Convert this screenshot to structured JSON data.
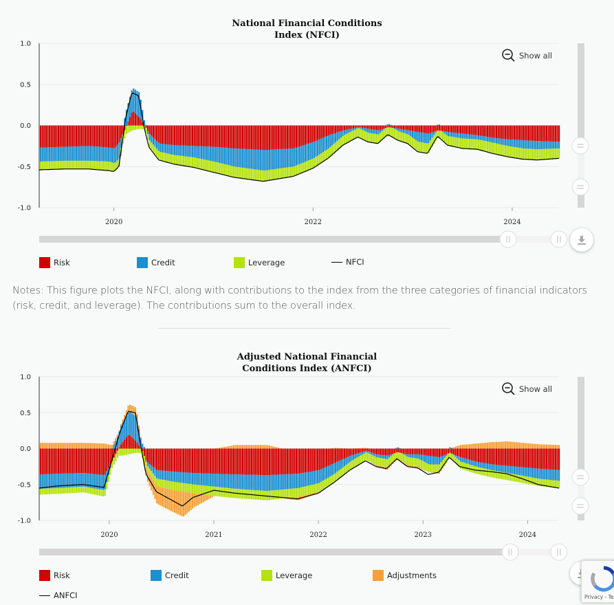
{
  "colors": {
    "risk": "#d00000",
    "credit": "#1b8fd0",
    "leverage": "#b5e20b",
    "adjustments": "#f7a035",
    "index_line": "#000000",
    "scrollbar": "#d6d6d6"
  },
  "icons": {
    "show_all": "zoom-out-icon",
    "download": "download-icon"
  },
  "chart_data": [
    {
      "type": "area",
      "title": "National Financial Conditions Index (NFCI)",
      "title_lines": [
        "National Financial Conditions",
        "Index (NFCI)"
      ],
      "show_all_label": "Show all",
      "y_ticks": [
        "1.0",
        "0.5",
        "0.0",
        "-0.5",
        "-1.0"
      ],
      "ylim": [
        -1.0,
        1.0
      ],
      "x_ticks": [
        "2020",
        "2022",
        "2024"
      ],
      "xlim": [
        2019.25,
        2024.47
      ],
      "legend": [
        {
          "name": "Risk",
          "kind": "swatch",
          "color": "#d00000"
        },
        {
          "name": "Credit",
          "kind": "swatch",
          "color": "#1b8fd0"
        },
        {
          "name": "Leverage",
          "kind": "swatch",
          "color": "#b5e20b"
        },
        {
          "name": "NFCI",
          "kind": "line",
          "color": "#000000"
        }
      ],
      "x": [
        2019.25,
        2019.5,
        2019.75,
        2019.95,
        2020.0,
        2020.05,
        2020.12,
        2020.18,
        2020.25,
        2020.3,
        2020.35,
        2020.45,
        2020.6,
        2020.8,
        2021.0,
        2021.2,
        2021.5,
        2021.8,
        2022.0,
        2022.15,
        2022.3,
        2022.45,
        2022.55,
        2022.65,
        2022.75,
        2022.85,
        2022.95,
        2023.05,
        2023.15,
        2023.25,
        2023.35,
        2023.5,
        2023.65,
        2023.8,
        2023.95,
        2024.1,
        2024.25,
        2024.47
      ],
      "series": [
        {
          "name": "Risk",
          "values": [
            -0.27,
            -0.26,
            -0.25,
            -0.27,
            -0.28,
            -0.2,
            0.0,
            0.18,
            0.1,
            0.0,
            -0.1,
            -0.22,
            -0.24,
            -0.25,
            -0.26,
            -0.28,
            -0.3,
            -0.28,
            -0.2,
            -0.12,
            -0.06,
            -0.02,
            -0.04,
            -0.06,
            -0.02,
            -0.04,
            -0.06,
            -0.08,
            -0.1,
            -0.06,
            -0.08,
            -0.1,
            -0.12,
            -0.15,
            -0.17,
            -0.18,
            -0.19,
            -0.2
          ]
        },
        {
          "name": "Credit",
          "values": [
            -0.17,
            -0.17,
            -0.18,
            -0.17,
            -0.18,
            -0.2,
            0.2,
            0.28,
            0.3,
            0.05,
            -0.08,
            -0.1,
            -0.12,
            -0.14,
            -0.18,
            -0.22,
            -0.25,
            -0.22,
            -0.2,
            -0.16,
            -0.06,
            -0.01,
            -0.05,
            -0.05,
            0.02,
            -0.03,
            -0.05,
            -0.12,
            -0.12,
            0.02,
            -0.05,
            -0.06,
            -0.05,
            -0.06,
            -0.08,
            -0.1,
            -0.1,
            -0.08
          ]
        },
        {
          "name": "Leverage",
          "values": [
            -0.1,
            -0.1,
            -0.1,
            -0.11,
            -0.1,
            -0.1,
            -0.1,
            -0.06,
            -0.04,
            -0.05,
            -0.08,
            -0.1,
            -0.11,
            -0.12,
            -0.13,
            -0.13,
            -0.13,
            -0.12,
            -0.12,
            -0.12,
            -0.12,
            -0.11,
            -0.11,
            -0.11,
            -0.11,
            -0.11,
            -0.11,
            -0.12,
            -0.12,
            -0.09,
            -0.11,
            -0.12,
            -0.12,
            -0.13,
            -0.13,
            -0.13,
            -0.13,
            -0.12
          ]
        },
        {
          "name": "NFCI",
          "values": [
            -0.54,
            -0.53,
            -0.53,
            -0.55,
            -0.56,
            -0.5,
            0.1,
            0.4,
            0.36,
            0.0,
            -0.26,
            -0.42,
            -0.47,
            -0.51,
            -0.57,
            -0.63,
            -0.68,
            -0.62,
            -0.52,
            -0.4,
            -0.24,
            -0.14,
            -0.2,
            -0.22,
            -0.11,
            -0.18,
            -0.22,
            -0.32,
            -0.34,
            -0.13,
            -0.24,
            -0.28,
            -0.29,
            -0.34,
            -0.38,
            -0.41,
            -0.42,
            -0.4
          ]
        }
      ]
    },
    {
      "type": "area",
      "title": "Adjusted National Financial Conditions Index (ANFCI)",
      "title_lines": [
        "Adjusted National Financial",
        "Conditions Index (ANFCI)"
      ],
      "show_all_label": "Show all",
      "y_ticks": [
        "1.0",
        "0.5",
        "0.0",
        "-0.5",
        "-1.0"
      ],
      "ylim": [
        -1.0,
        1.0
      ],
      "x_ticks": [
        "2020",
        "2021",
        "2022",
        "2023",
        "2024"
      ],
      "xlim": [
        2019.33,
        2024.3
      ],
      "legend": [
        {
          "name": "Risk",
          "kind": "swatch",
          "color": "#d00000"
        },
        {
          "name": "Credit",
          "kind": "swatch",
          "color": "#1b8fd0"
        },
        {
          "name": "Leverage",
          "kind": "swatch",
          "color": "#b5e20b"
        },
        {
          "name": "Adjustments",
          "kind": "swatch",
          "color": "#f7a035"
        },
        {
          "name": "ANFCI",
          "kind": "line",
          "color": "#000000"
        }
      ],
      "x": [
        2019.33,
        2019.5,
        2019.75,
        2019.95,
        2020.1,
        2020.18,
        2020.25,
        2020.3,
        2020.35,
        2020.45,
        2020.6,
        2020.7,
        2020.8,
        2021.0,
        2021.2,
        2021.5,
        2021.8,
        2022.0,
        2022.15,
        2022.3,
        2022.45,
        2022.55,
        2022.65,
        2022.75,
        2022.85,
        2022.95,
        2023.05,
        2023.15,
        2023.25,
        2023.35,
        2023.5,
        2023.65,
        2023.8,
        2023.95,
        2024.1,
        2024.3
      ],
      "series": [
        {
          "name": "Risk",
          "values": [
            -0.36,
            -0.35,
            -0.34,
            -0.37,
            0.05,
            0.2,
            0.1,
            0.0,
            -0.18,
            -0.3,
            -0.32,
            -0.33,
            -0.34,
            -0.35,
            -0.36,
            -0.37,
            -0.35,
            -0.3,
            -0.2,
            -0.1,
            -0.03,
            -0.08,
            -0.1,
            -0.05,
            -0.08,
            -0.08,
            -0.1,
            -0.12,
            -0.06,
            -0.12,
            -0.18,
            -0.22,
            -0.24,
            -0.26,
            -0.28,
            -0.3
          ]
        },
        {
          "name": "Credit",
          "values": [
            -0.2,
            -0.2,
            -0.19,
            -0.21,
            0.25,
            0.32,
            0.35,
            0.1,
            -0.04,
            -0.12,
            -0.14,
            -0.15,
            -0.16,
            -0.18,
            -0.2,
            -0.22,
            -0.2,
            -0.18,
            -0.15,
            -0.08,
            -0.02,
            -0.04,
            -0.05,
            0.02,
            -0.04,
            -0.06,
            -0.12,
            -0.1,
            0.02,
            -0.06,
            -0.07,
            -0.08,
            -0.1,
            -0.12,
            -0.14,
            -0.15
          ]
        },
        {
          "name": "Leverage",
          "values": [
            -0.08,
            -0.08,
            -0.08,
            -0.09,
            -0.1,
            -0.08,
            -0.06,
            -0.06,
            -0.08,
            -0.1,
            -0.12,
            -0.12,
            -0.12,
            -0.13,
            -0.13,
            -0.13,
            -0.12,
            -0.12,
            -0.12,
            -0.12,
            -0.11,
            -0.11,
            -0.11,
            -0.11,
            -0.11,
            -0.11,
            -0.11,
            -0.11,
            -0.08,
            -0.1,
            -0.1,
            -0.1,
            -0.1,
            -0.1,
            -0.1,
            -0.1
          ]
        },
        {
          "name": "Adjustments",
          "values": [
            0.08,
            0.08,
            0.08,
            0.07,
            0.02,
            0.1,
            0.12,
            0.0,
            -0.12,
            -0.25,
            -0.3,
            -0.35,
            -0.2,
            0.0,
            0.05,
            0.05,
            -0.05,
            -0.02,
            0.01,
            0.0,
            0.01,
            -0.02,
            -0.04,
            0.0,
            -0.02,
            -0.02,
            0.0,
            -0.02,
            0.0,
            0.05,
            0.07,
            0.09,
            0.1,
            0.08,
            0.06,
            0.05
          ]
        },
        {
          "name": "ANFCI",
          "values": [
            -0.55,
            -0.52,
            -0.5,
            -0.54,
            0.22,
            0.52,
            0.5,
            0.05,
            -0.35,
            -0.6,
            -0.72,
            -0.8,
            -0.68,
            -0.58,
            -0.62,
            -0.66,
            -0.7,
            -0.62,
            -0.47,
            -0.3,
            -0.17,
            -0.25,
            -0.28,
            -0.14,
            -0.25,
            -0.27,
            -0.36,
            -0.33,
            -0.12,
            -0.25,
            -0.3,
            -0.32,
            -0.35,
            -0.42,
            -0.5,
            -0.55
          ]
        }
      ]
    }
  ],
  "notes": "Notes: This figure plots the NFCI, along with contributions to the index from the three categories of financial indicators (risk, credit, and leverage). The contributions sum to the overall index.",
  "recaptcha_label": "Privacy - Te"
}
